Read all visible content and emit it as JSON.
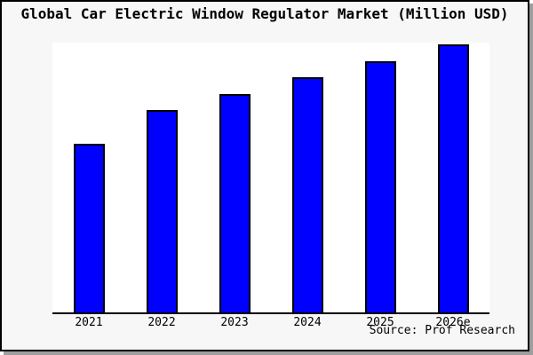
{
  "figure": {
    "title": "Global Car Electric Window Regulator Market (Million USD)",
    "source": "Source: Prof Research"
  },
  "colors": {
    "bar_fill": "#0000ff",
    "bar_border": "#000000",
    "figure_bg": "#f7f7f7",
    "plot_bg": "#ffffff",
    "axis_line": "#000000",
    "frame_border": "#000000",
    "frame_shadow": "#9e9e9e",
    "text": "#000000"
  },
  "chart_data": {
    "type": "bar",
    "title": "Global Car Electric Window Regulator Market (Million USD)",
    "categories": [
      "2021",
      "2022",
      "2023",
      "2024",
      "2025",
      "2026e"
    ],
    "values": [
      62.9,
      75.5,
      81.5,
      87.7,
      93.7,
      100
    ],
    "values_note": "y-axis has no tick labels; values estimated from bar heights as percent of tallest bar (2026e = 100)",
    "xlabel": "",
    "ylabel": "",
    "ylim": [
      0,
      100.7
    ],
    "grid": false,
    "legend": null,
    "bar_color": "#0000ff",
    "source": "Source: Prof Research"
  }
}
